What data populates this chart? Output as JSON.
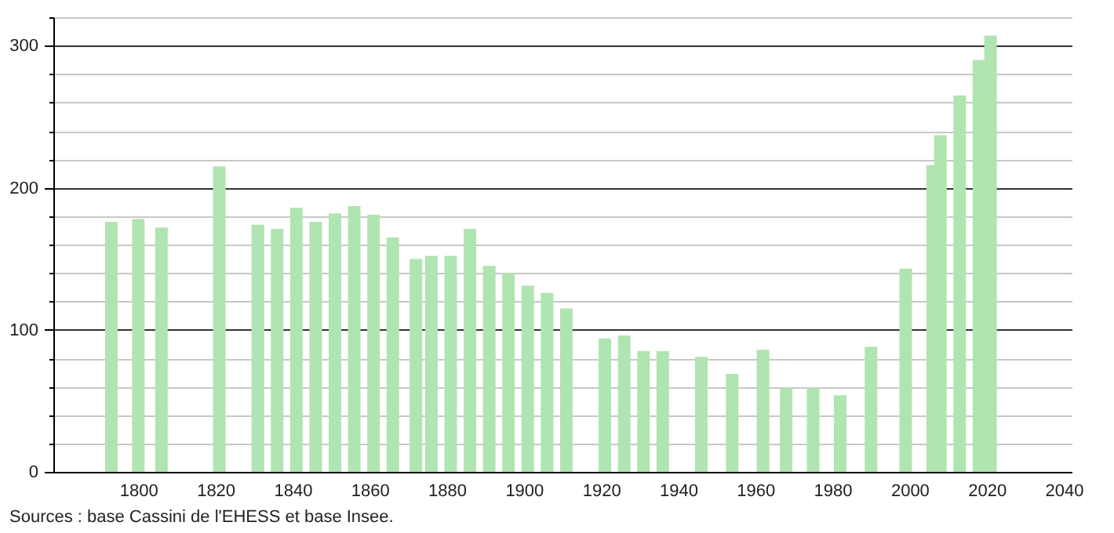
{
  "chart_data": {
    "type": "bar",
    "x": [
      1793,
      1800,
      1806,
      1821,
      1831,
      1836,
      1841,
      1846,
      1851,
      1856,
      1861,
      1866,
      1872,
      1876,
      1881,
      1886,
      1891,
      1896,
      1901,
      1906,
      1911,
      1921,
      1926,
      1931,
      1936,
      1946,
      1954,
      1962,
      1968,
      1975,
      1982,
      1990,
      1999,
      2006,
      2008,
      2013,
      2018,
      2021
    ],
    "values": [
      176,
      178,
      172,
      215,
      174,
      171,
      186,
      176,
      182,
      187,
      181,
      165,
      150,
      152,
      152,
      171,
      145,
      140,
      131,
      126,
      115,
      94,
      96,
      85,
      85,
      81,
      69,
      86,
      59,
      59,
      54,
      88,
      143,
      216,
      237,
      265,
      290,
      307
    ],
    "color": "#b0e4b0",
    "xlim": [
      1780,
      2040
    ],
    "xticks": [
      1800,
      1820,
      1840,
      1860,
      1880,
      1900,
      1920,
      1940,
      1960,
      1980,
      2000,
      2020,
      2040
    ],
    "ylim": [
      0,
      320
    ],
    "yticks": [
      0,
      {
        "value": 20,
        "label": null
      },
      {
        "value": 40,
        "label": null
      },
      {
        "value": 60,
        "label": null
      },
      {
        "value": 80,
        "label": null
      },
      100,
      {
        "value": 120,
        "label": null
      },
      {
        "value": 140,
        "label": null
      },
      {
        "value": 160,
        "label": null
      },
      {
        "value": 180,
        "label": null
      },
      200,
      {
        "value": 220,
        "label": null
      },
      {
        "value": 240,
        "label": null
      },
      {
        "value": 260,
        "label": null
      },
      {
        "value": 280,
        "label": null
      },
      300,
      {
        "value": 320,
        "label": null
      }
    ],
    "grid": "y",
    "annotations": [
      "Sources : base Cassini de l'EHESS et base Insee."
    ]
  }
}
